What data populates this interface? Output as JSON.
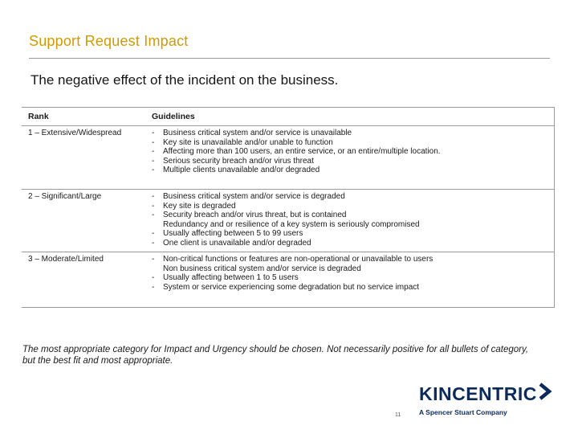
{
  "slide": {
    "title": "Support Request Impact",
    "subtitle": "The negative effect of the incident on the business.",
    "page_number": "11"
  },
  "table": {
    "headers": {
      "rank": "Rank",
      "guidelines": "Guidelines"
    },
    "rows": [
      {
        "rank": "1 – Extensive/Widespread",
        "guidelines": [
          {
            "dash": "-",
            "text": "Business critical system and/or service is unavailable"
          },
          {
            "dash": "-",
            "text": "Key site is unavailable and/or unable to function"
          },
          {
            "dash": "-",
            "text": "Affecting more than 100 users, an entire service, or an entire/multiple location."
          },
          {
            "dash": "-",
            "text": "Serious security breach and/or virus threat"
          },
          {
            "dash": "-",
            "text": "Multiple clients unavailable and/or degraded"
          }
        ]
      },
      {
        "rank": "2 – Significant/Large",
        "guidelines": [
          {
            "dash": "-",
            "text": "Business critical system and/or service is degraded"
          },
          {
            "dash": "-",
            "text": "Key site is degraded"
          },
          {
            "dash": "-",
            "text": "Security breach and/or virus threat, but is contained"
          },
          {
            "dash": "",
            "text": "Redundancy and or resilience of a key system is seriously compromised"
          },
          {
            "dash": "-",
            "text": "Usually affecting between 5 to 99 users"
          },
          {
            "dash": "-",
            "text": "One client is unavailable and/or degraded"
          }
        ]
      },
      {
        "rank": "3 – Moderate/Limited",
        "guidelines": [
          {
            "dash": "-",
            "text": "Non-critical functions or features are non-operational or unavailable to users"
          },
          {
            "dash": "",
            "text": "Non business critical system and/or service is degraded"
          },
          {
            "dash": "-",
            "text": "Usually affecting between 1 to 5 users"
          },
          {
            "dash": "-",
            "text": "System or service experiencing some degradation but no service impact"
          }
        ]
      }
    ]
  },
  "footnote": "The most appropriate category for Impact and Urgency should be chosen. Not necessarily positive for all bullets of category, but the best fit and most appropriate.",
  "logo": {
    "wordmark": "KINCENTRIC",
    "tagline": "A Spencer Stuart Company",
    "color": "#0c2a5c"
  },
  "colors": {
    "title_accent": "#d29a00",
    "rule": "#9a9a9a"
  }
}
